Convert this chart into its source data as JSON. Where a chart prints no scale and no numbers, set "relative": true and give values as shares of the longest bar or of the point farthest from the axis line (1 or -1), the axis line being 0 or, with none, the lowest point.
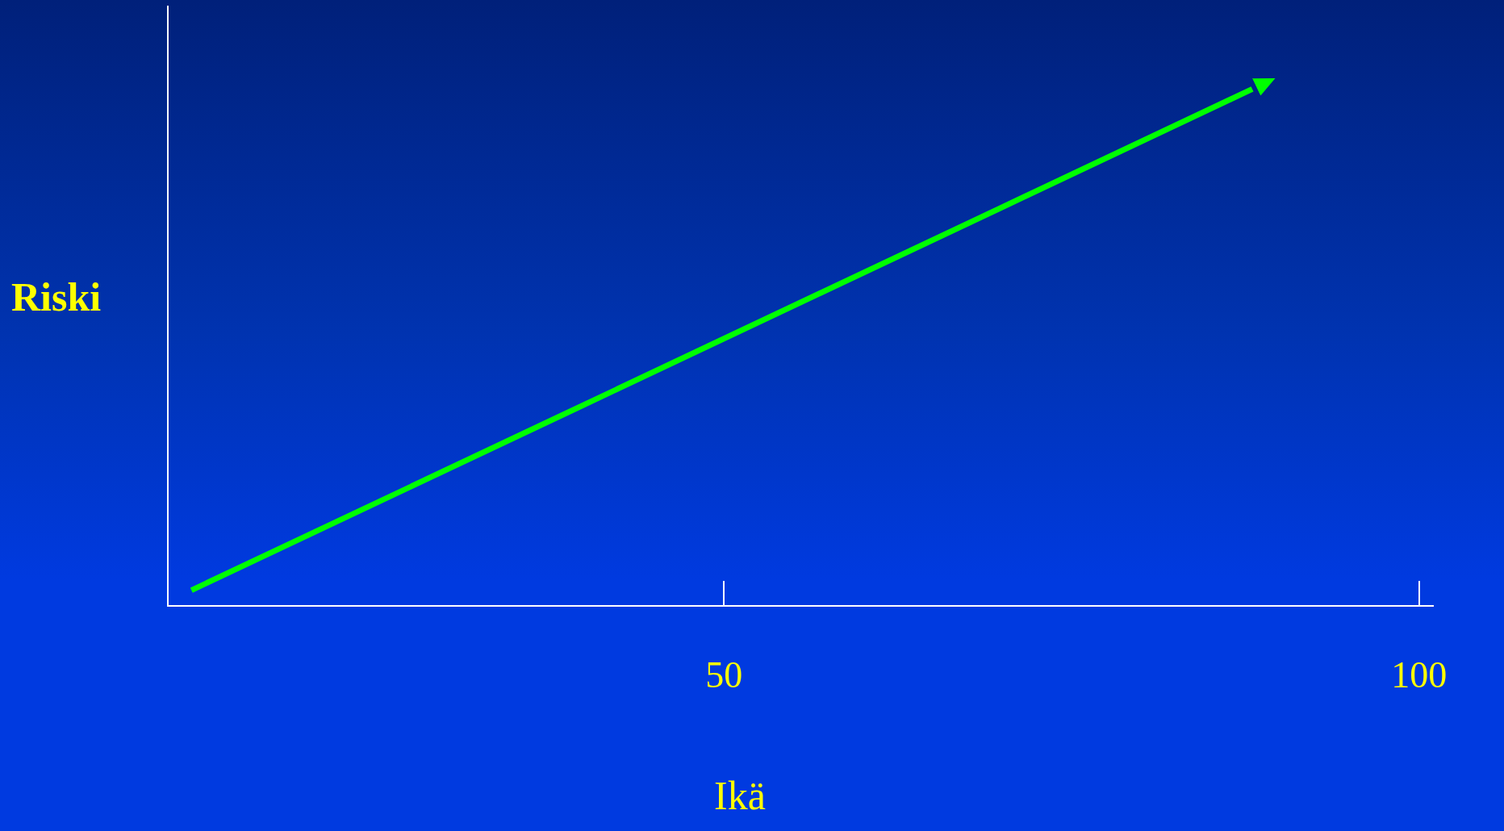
{
  "chart_data": {
    "type": "line",
    "xlabel": "Ikä",
    "ylabel": "Riski",
    "relative": true,
    "xlim": [
      10,
      101
    ],
    "xticks": [
      50,
      100
    ],
    "series": [
      {
        "color": "#00ff00",
        "x": [
          11.7,
          88
        ],
        "values": [
          0.03,
          1
        ]
      }
    ],
    "grid": false,
    "legend": false,
    "marker": "none",
    "line_style": "solid"
  }
}
